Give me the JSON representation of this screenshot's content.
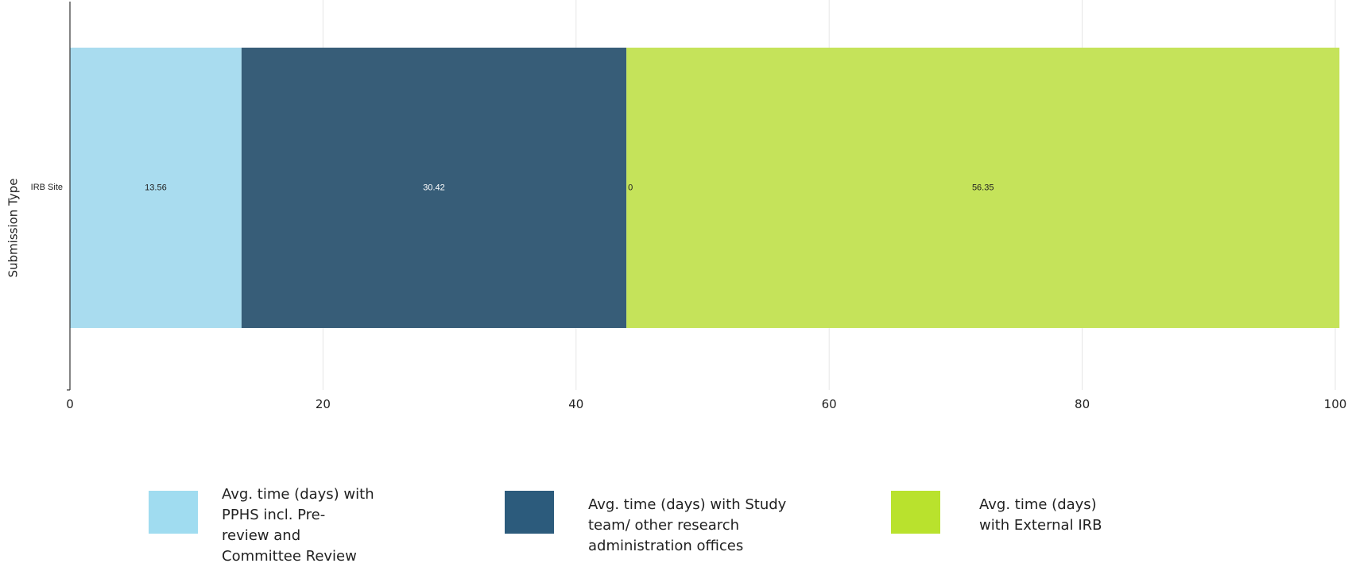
{
  "chart_data": {
    "type": "bar",
    "orientation": "horizontal",
    "stacked": true,
    "categories": [
      "IRB Site"
    ],
    "series": [
      {
        "name": "Avg. time (days) with\nPPHS incl. Pre-\nreview and\nCommittee Review",
        "values": [
          13.56
        ],
        "color": "#a9dcef",
        "legend_color": "#a0dcf0",
        "label_color": "#222222"
      },
      {
        "name": "Avg. time (days) with Study\nteam/ other research\nadministration offices",
        "values": [
          30.42
        ],
        "color": "#375d78",
        "legend_color": "#2c5b7c",
        "label_color": "#ffffff"
      },
      {
        "name": "",
        "values": [
          0
        ],
        "color": "#c5e35a",
        "legend_color": "#c5e35a",
        "label_color": "#222222"
      },
      {
        "name": "Avg. time (days)\nwith External IRB",
        "values": [
          56.35
        ],
        "color": "#c5e35a",
        "legend_color": "#b9e22d",
        "label_color": "#222222"
      }
    ],
    "data_labels": [
      "13.56",
      "30.42",
      "0",
      "56.35"
    ],
    "title": "",
    "ylabel": "Submission Type",
    "xlabel": "",
    "xlim": [
      0,
      100
    ],
    "x_ticks": [
      0,
      20,
      40,
      60,
      80,
      100
    ],
    "grid": true,
    "legend_position": "bottom"
  }
}
